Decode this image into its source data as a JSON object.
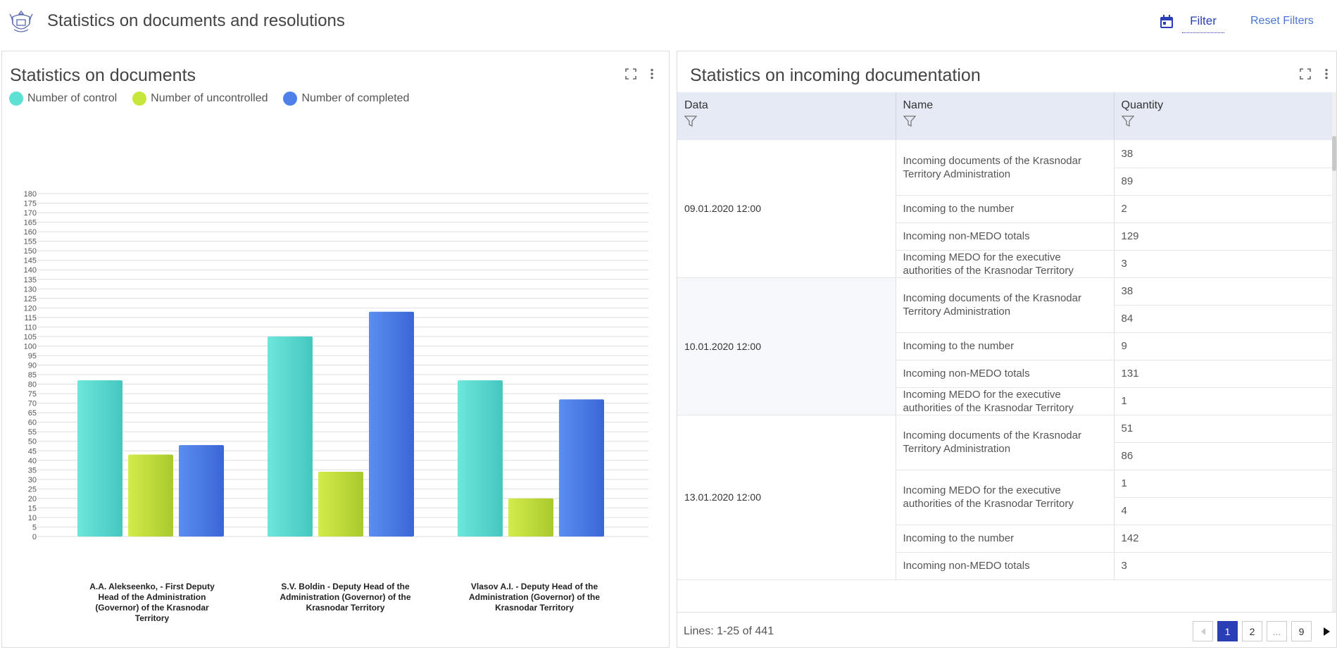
{
  "header": {
    "title": "Statistics on documents and resolutions",
    "filter_label": "Filter",
    "reset_label": "Reset Filters"
  },
  "left_panel": {
    "title": "Statistics on documents",
    "legend": [
      {
        "label": "Number of control",
        "color": "#5fe0d4"
      },
      {
        "label": "Number of uncontrolled",
        "color": "#c6e63c"
      },
      {
        "label": "Number of completed",
        "color": "#4f80ea"
      }
    ]
  },
  "chart_data": {
    "type": "bar",
    "categories": [
      "A.A. Alekseenko, - First Deputy Head of the Administration (Governor) of the Krasnodar Territory",
      "S.V. Boldin - Deputy Head of the Administration (Governor) of the Krasnodar Territory",
      "Vlasov A.I. - Deputy Head of the Administration (Governor) of the Krasnodar Territory"
    ],
    "series": [
      {
        "name": "Number of control",
        "values": [
          82,
          105,
          82
        ],
        "color": "#5fe0d4"
      },
      {
        "name": "Number of uncontrolled",
        "values": [
          43,
          34,
          20
        ],
        "color": "#c6e63c"
      },
      {
        "name": "Number of completed",
        "values": [
          48,
          118,
          72
        ],
        "color": "#4f80ea"
      }
    ],
    "ylim": [
      0,
      180
    ],
    "ystep": 5,
    "grid": true,
    "legend": "top-left"
  },
  "right_panel": {
    "title": "Statistics on incoming documentation",
    "columns": [
      "Data",
      "Name",
      "Quantity"
    ],
    "groups": [
      {
        "date": "09.01.2020 12:00",
        "items": [
          {
            "name": "Incoming documents of the Krasnodar Territory Administration",
            "qty": [
              "38",
              "89"
            ]
          },
          {
            "name": "Incoming to the number",
            "qty": [
              "2"
            ]
          },
          {
            "name": "Incoming non-MEDO totals",
            "qty": [
              "129"
            ]
          },
          {
            "name": "Incoming MEDO for the executive authorities of the Krasnodar Territory",
            "qty": [
              "3"
            ]
          }
        ]
      },
      {
        "date": "10.01.2020 12:00",
        "items": [
          {
            "name": "Incoming documents of the Krasnodar Territory Administration",
            "qty": [
              "38",
              "84"
            ]
          },
          {
            "name": "Incoming to the number",
            "qty": [
              "9"
            ]
          },
          {
            "name": "Incoming non-MEDO totals",
            "qty": [
              "131"
            ]
          },
          {
            "name": "Incoming MEDO for the executive authorities of the Krasnodar Territory",
            "qty": [
              "1"
            ]
          }
        ]
      },
      {
        "date": "13.01.2020 12:00",
        "items": [
          {
            "name": "Incoming documents of the Krasnodar Territory Administration",
            "qty": [
              "51",
              "86"
            ]
          },
          {
            "name": "Incoming MEDO for the executive authorities of the Krasnodar Territory",
            "qty": [
              "1",
              "4"
            ]
          },
          {
            "name": "Incoming to the number",
            "qty": [
              "142"
            ]
          },
          {
            "name": "Incoming non-MEDO totals",
            "qty": [
              "3"
            ]
          }
        ]
      }
    ],
    "lines_text": "Lines: 1-25 of 441",
    "pages": [
      "1",
      "2",
      "...",
      "9"
    ],
    "active_page": "1"
  }
}
